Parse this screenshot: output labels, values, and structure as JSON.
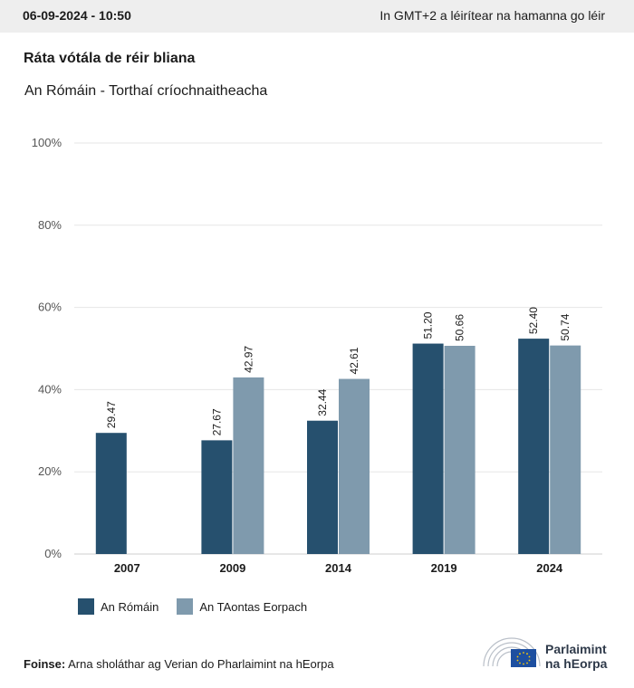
{
  "header": {
    "date": "06-09-2024 - 10:50",
    "timezone_note": "In GMT+2 a léirítear na hamanna go léir"
  },
  "colors": {
    "series_1": "#26506e",
    "series_2": "#7f9aad",
    "grid": "#e6e6e6",
    "topbar": "#eeeeee"
  },
  "chart_data": {
    "type": "bar",
    "title": "Ráta vótála de réir bliana",
    "subtitle": "An Rómáin - Torthaí críochnaitheacha",
    "categories": [
      "2007",
      "2009",
      "2014",
      "2019",
      "2024"
    ],
    "series": [
      {
        "name": "An Rómáin",
        "values": [
          29.47,
          27.67,
          32.44,
          51.2,
          52.4
        ],
        "labels": [
          "29.47",
          "27.67",
          "32.44",
          "51.20",
          "52.40"
        ]
      },
      {
        "name": "An TAontas Eorpach",
        "values": [
          null,
          42.97,
          42.61,
          50.66,
          50.74
        ],
        "labels": [
          "",
          "42.97",
          "42.61",
          "50.66",
          "50.74"
        ]
      }
    ],
    "ylim": [
      0,
      100
    ],
    "yticks": [
      "0%",
      "20%",
      "40%",
      "60%",
      "80%",
      "100%"
    ],
    "ytick_values": [
      0,
      20,
      40,
      60,
      80,
      100
    ],
    "grid": true,
    "legend": "bottom-left"
  },
  "footer": {
    "source_label": "Foinse:",
    "source_text": "Arna sholáthar ag Verian do Pharlaimint na hEorpa",
    "logo_line1": "Parlaimint",
    "logo_line2": "na hEorpa"
  }
}
